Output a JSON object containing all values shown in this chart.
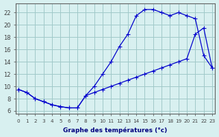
{
  "xlabel": "Graphe des températures (°c)",
  "bg_color": "#d8f0f0",
  "line_color": "#0000cc",
  "grid_color": "#a0c8c8",
  "axis_color": "#606060",
  "upper_x": [
    0,
    1,
    2,
    3,
    4,
    5,
    6,
    7,
    8,
    9,
    10,
    11,
    12,
    13,
    14,
    15,
    16,
    17,
    18,
    19,
    20,
    21,
    22,
    23
  ],
  "upper_y": [
    9.5,
    9.0,
    8.0,
    7.5,
    7.0,
    6.7,
    6.5,
    6.5,
    8.5,
    10.0,
    12.0,
    14.0,
    16.5,
    18.5,
    21.5,
    22.5,
    22.5,
    22.0,
    21.5,
    22.0,
    21.5,
    21.0,
    15.0,
    13.0
  ],
  "lower_x": [
    0,
    1,
    2,
    3,
    4,
    5,
    6,
    7,
    8,
    9,
    10,
    11,
    12,
    13,
    14,
    15,
    16,
    17,
    18,
    19,
    20,
    21,
    22,
    23
  ],
  "lower_y": [
    9.5,
    9.0,
    8.0,
    7.5,
    7.0,
    6.7,
    6.5,
    6.5,
    8.5,
    9.0,
    9.5,
    10.0,
    10.5,
    11.0,
    11.5,
    12.0,
    12.5,
    13.0,
    13.5,
    14.0,
    14.5,
    18.5,
    19.5,
    13.0
  ],
  "xlim": [
    -0.3,
    23.3
  ],
  "ylim": [
    5.5,
    23.5
  ],
  "xticks": [
    0,
    1,
    2,
    3,
    4,
    5,
    6,
    7,
    8,
    9,
    10,
    11,
    12,
    13,
    14,
    15,
    16,
    17,
    18,
    19,
    20,
    21,
    22,
    23
  ],
  "yticks": [
    6,
    8,
    10,
    12,
    14,
    16,
    18,
    20,
    22
  ]
}
